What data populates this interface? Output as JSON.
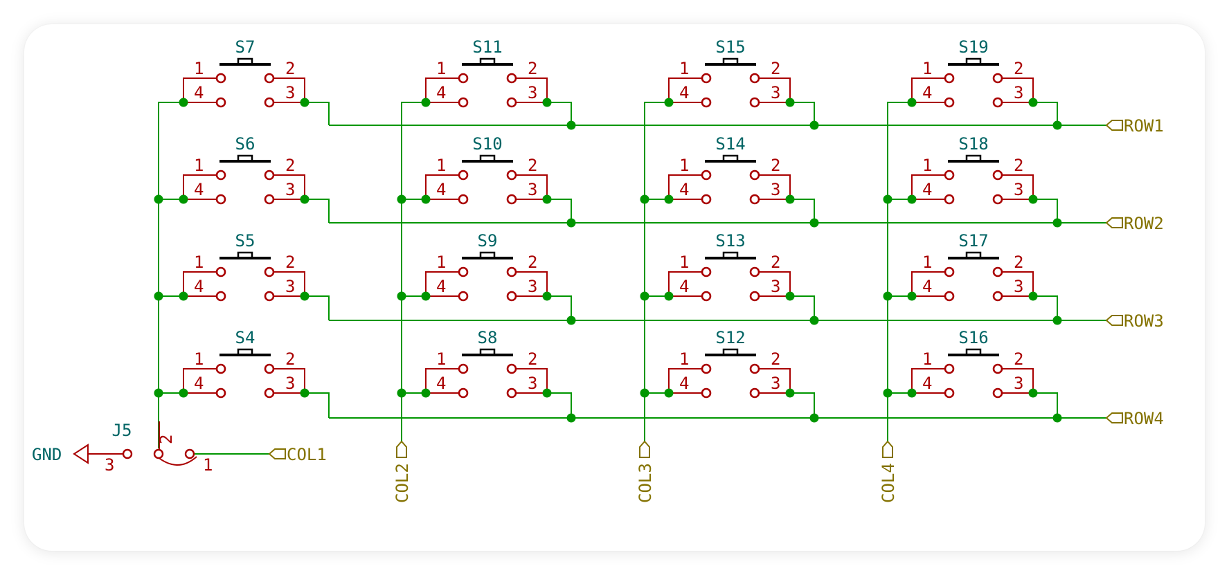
{
  "colors": {
    "wire": "#009600",
    "junction": "#009600",
    "symbol": "#A90000",
    "plunger": "#000000",
    "reference": "#006464",
    "label": "#847200",
    "power": "#A90000"
  },
  "icons": {
    "switch": "push-button-switch-icon",
    "junction": "junction-dot-icon",
    "label": "hierarchical-label-arrow-icon",
    "power": "ground-power-symbol-icon"
  },
  "switches": [
    {
      "ref": "S7",
      "column": 1,
      "row": 1
    },
    {
      "ref": "S6",
      "column": 1,
      "row": 2
    },
    {
      "ref": "S5",
      "column": 1,
      "row": 3
    },
    {
      "ref": "S4",
      "column": 1,
      "row": 4
    },
    {
      "ref": "S11",
      "column": 2,
      "row": 1
    },
    {
      "ref": "S10",
      "column": 2,
      "row": 2
    },
    {
      "ref": "S9",
      "column": 2,
      "row": 3
    },
    {
      "ref": "S8",
      "column": 2,
      "row": 4
    },
    {
      "ref": "S15",
      "column": 3,
      "row": 1
    },
    {
      "ref": "S14",
      "column": 3,
      "row": 2
    },
    {
      "ref": "S13",
      "column": 3,
      "row": 3
    },
    {
      "ref": "S12",
      "column": 3,
      "row": 4
    },
    {
      "ref": "S19",
      "column": 4,
      "row": 1
    },
    {
      "ref": "S18",
      "column": 4,
      "row": 2
    },
    {
      "ref": "S17",
      "column": 4,
      "row": 3
    },
    {
      "ref": "S16",
      "column": 4,
      "row": 4
    }
  ],
  "switch_pins": [
    "1",
    "2",
    "3",
    "4"
  ],
  "row_labels": [
    "ROW1",
    "ROW2",
    "ROW3",
    "ROW4"
  ],
  "column_labels": [
    "COL1",
    "COL2",
    "COL3",
    "COL4"
  ],
  "jumper": {
    "ref": "J5",
    "pins": [
      "1",
      "2",
      "3"
    ]
  },
  "power": {
    "name": "GND"
  }
}
